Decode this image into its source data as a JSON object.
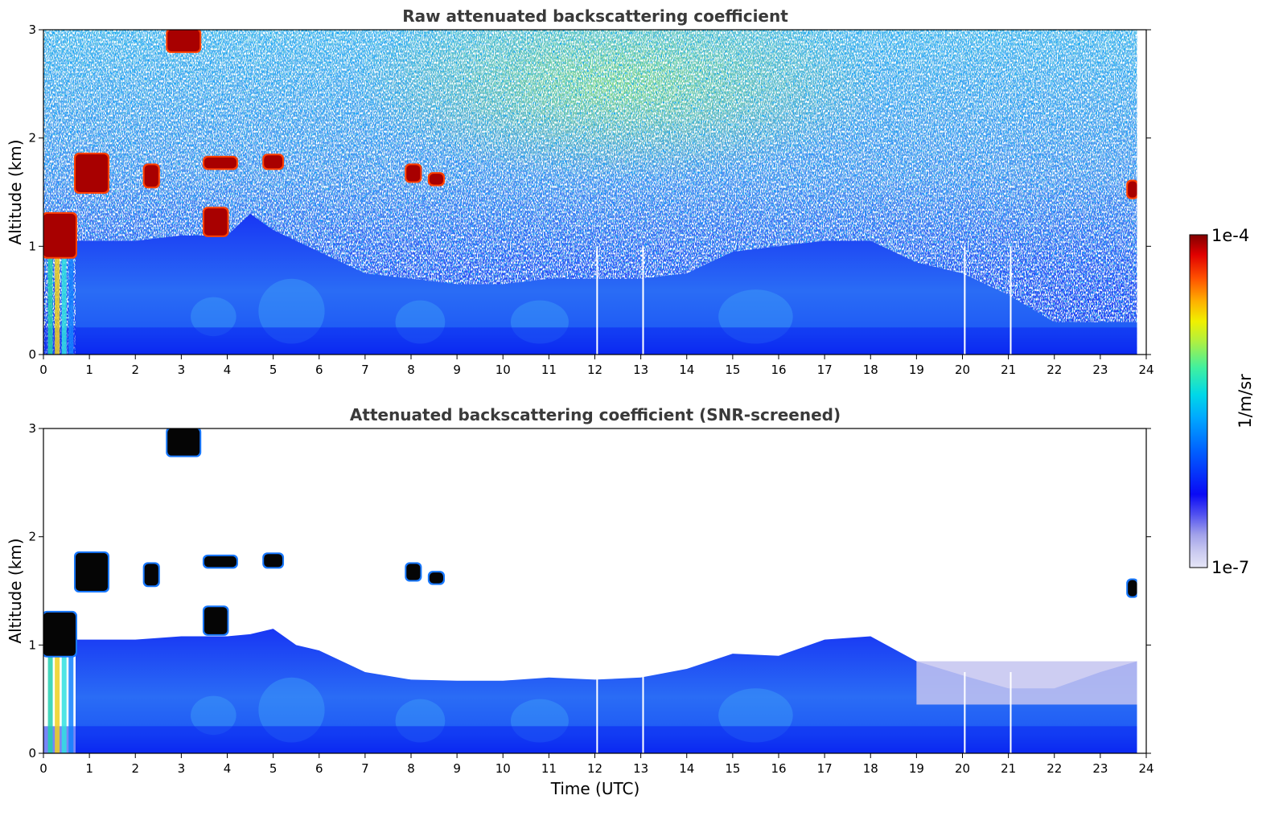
{
  "chart_data": [
    {
      "type": "heatmap",
      "title": "Raw attenuated backscattering coefficient",
      "xlabel": "",
      "ylabel": "Altitude (km)",
      "xlim": [
        0,
        24
      ],
      "ylim": [
        0,
        3
      ],
      "xticks": [
        "0",
        "1",
        "2",
        "3",
        "4",
        "5",
        "6",
        "7",
        "8",
        "9",
        "10",
        "11",
        "12",
        "13",
        "14",
        "15",
        "16",
        "17",
        "18",
        "19",
        "20",
        "21",
        "22",
        "23",
        "24"
      ],
      "yticks": [
        "0",
        "1",
        "2",
        "3"
      ],
      "data_extent_x": [
        0,
        23.8
      ],
      "boundary_layer_top_km": {
        "x": [
          0.7,
          1,
          2,
          3,
          4,
          4.5,
          5,
          6,
          7,
          8,
          9,
          10,
          11,
          12,
          13,
          14,
          15,
          16,
          17,
          18,
          19,
          20,
          21,
          22,
          23,
          23.8
        ],
        "y": [
          1.05,
          1.05,
          1.05,
          1.1,
          1.1,
          1.3,
          1.15,
          0.95,
          0.75,
          0.7,
          0.65,
          0.65,
          0.7,
          0.7,
          0.7,
          0.75,
          0.95,
          1.0,
          1.05,
          1.05,
          0.85,
          0.75,
          0.55,
          0.3,
          0.3,
          0.3
        ]
      },
      "clouds": [
        {
          "x": [
            0,
            0.7
          ],
          "y": [
            0.9,
            1.3
          ]
        },
        {
          "x": [
            0.7,
            1.4
          ],
          "y": [
            1.5,
            1.85
          ]
        },
        {
          "x": [
            2.2,
            2.5
          ],
          "y": [
            1.55,
            1.75
          ]
        },
        {
          "x": [
            2.7,
            3.4
          ],
          "y": [
            2.8,
            3.0
          ]
        },
        {
          "x": [
            3.5,
            4.0
          ],
          "y": [
            1.1,
            1.35
          ]
        },
        {
          "x": [
            3.5,
            4.2
          ],
          "y": [
            1.72,
            1.82
          ]
        },
        {
          "x": [
            4.8,
            5.2
          ],
          "y": [
            1.72,
            1.84
          ]
        },
        {
          "x": [
            7.9,
            8.2
          ],
          "y": [
            1.6,
            1.75
          ]
        },
        {
          "x": [
            8.4,
            8.7
          ],
          "y": [
            1.57,
            1.67
          ]
        },
        {
          "x": [
            23.6,
            23.8
          ],
          "y": [
            1.45,
            1.6
          ]
        }
      ],
      "gaps_utc": [
        12.05,
        13.05,
        20.05,
        21.05
      ]
    },
    {
      "type": "heatmap",
      "title": "Attenuated backscattering coefficient (SNR-screened)",
      "xlabel": "Time (UTC)",
      "ylabel": "Altitude (km)",
      "xlim": [
        0,
        24
      ],
      "ylim": [
        0,
        3
      ],
      "xticks": [
        "0",
        "1",
        "2",
        "3",
        "4",
        "5",
        "6",
        "7",
        "8",
        "9",
        "10",
        "11",
        "12",
        "13",
        "14",
        "15",
        "16",
        "17",
        "18",
        "19",
        "20",
        "21",
        "22",
        "23",
        "24"
      ],
      "yticks": [
        "0",
        "1",
        "2",
        "3"
      ],
      "data_extent_x": [
        0,
        23.8
      ],
      "boundary_layer_top_km": {
        "x": [
          0.7,
          1,
          2,
          3,
          4,
          4.5,
          5,
          5.5,
          6,
          7,
          8,
          9,
          10,
          11,
          12,
          13,
          14,
          15,
          16,
          17,
          18,
          19,
          20,
          21,
          22,
          23,
          23.8
        ],
        "y": [
          1.05,
          1.05,
          1.05,
          1.08,
          1.08,
          1.1,
          1.15,
          1.0,
          0.95,
          0.75,
          0.68,
          0.67,
          0.67,
          0.7,
          0.68,
          0.7,
          0.78,
          0.92,
          0.9,
          1.05,
          1.08,
          0.85,
          0.72,
          0.6,
          0.6,
          0.75,
          0.85
        ]
      },
      "clouds": [
        {
          "x": [
            0,
            0.7
          ],
          "y": [
            0.9,
            1.3
          ]
        },
        {
          "x": [
            0.7,
            1.4
          ],
          "y": [
            1.5,
            1.85
          ]
        },
        {
          "x": [
            2.2,
            2.5
          ],
          "y": [
            1.55,
            1.75
          ]
        },
        {
          "x": [
            2.7,
            3.4
          ],
          "y": [
            2.75,
            3.0
          ]
        },
        {
          "x": [
            3.5,
            4.0
          ],
          "y": [
            1.1,
            1.35
          ]
        },
        {
          "x": [
            3.5,
            4.2
          ],
          "y": [
            1.72,
            1.82
          ]
        },
        {
          "x": [
            4.8,
            5.2
          ],
          "y": [
            1.72,
            1.84
          ]
        },
        {
          "x": [
            7.9,
            8.2
          ],
          "y": [
            1.6,
            1.75
          ]
        },
        {
          "x": [
            8.4,
            8.7
          ],
          "y": [
            1.57,
            1.67
          ]
        },
        {
          "x": [
            23.6,
            23.8
          ],
          "y": [
            1.45,
            1.6
          ]
        }
      ],
      "faint_layer": {
        "x": [
          19.0,
          23.8
        ],
        "top_km": 0.85
      },
      "gaps_utc": [
        12.05,
        13.05,
        20.05,
        21.05
      ]
    }
  ],
  "colorbar": {
    "label": "1/m/sr",
    "min_label": "1e-7",
    "max_label": "1e-4",
    "scale": "log",
    "colors": [
      "#e6e6f7",
      "#c8c8f0",
      "#a0a0ea",
      "#7878ee",
      "#4646f2",
      "#1010f5",
      "#0020ff",
      "#0050ff",
      "#0080ff",
      "#00b0ff",
      "#00d8e8",
      "#20f0b0",
      "#70f070",
      "#c0f030",
      "#f0f000",
      "#ffc000",
      "#ff8000",
      "#ff4000",
      "#e00000",
      "#8b0000"
    ]
  }
}
